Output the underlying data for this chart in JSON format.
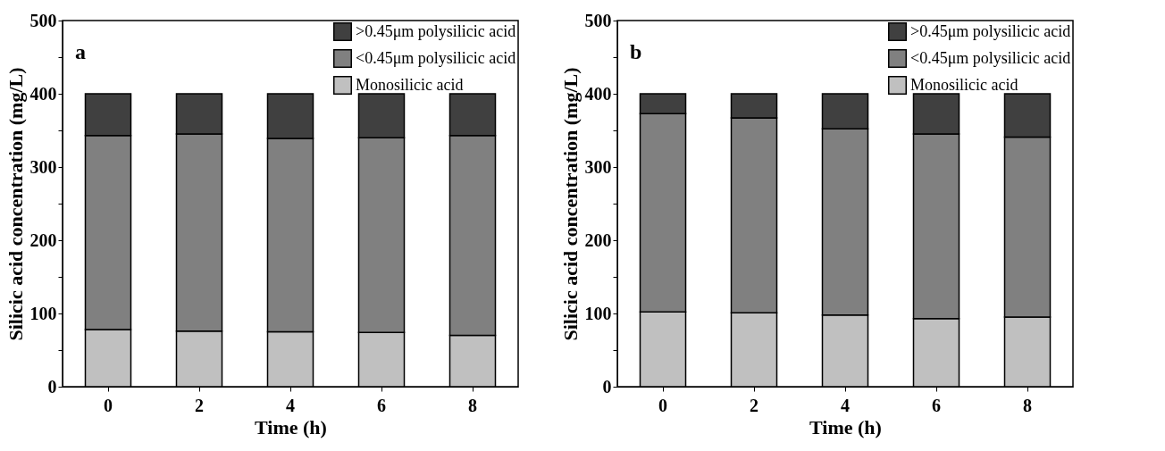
{
  "chart_data": [
    {
      "type": "bar",
      "stacked": true,
      "annotations": [
        "a"
      ],
      "xlabel": "Time (h)",
      "ylabel": "Silicic acid concentration (mg/L)",
      "categories": [
        "0",
        "2",
        "4",
        "6",
        "8"
      ],
      "series": [
        {
          "name": "Monosilicic acid",
          "color": "#c0c0c0",
          "values": [
            78,
            76,
            75,
            74,
            70
          ]
        },
        {
          "name": "<0.45μm polysilicic acid",
          "color": "#808080",
          "values": [
            265,
            269,
            264,
            266,
            273
          ]
        },
        {
          "name": ">0.45μm polysilicic acid",
          "color": "#404040",
          "values": [
            57,
            55,
            61,
            60,
            57
          ]
        }
      ],
      "ylim": [
        0,
        500
      ],
      "yticks": [
        0,
        {
          "value": 50,
          "label": null
        },
        100,
        {
          "value": 150,
          "label": null
        },
        200,
        {
          "value": 250,
          "label": null
        },
        300,
        {
          "value": 350,
          "label": null
        },
        400,
        {
          "value": 450,
          "label": null
        },
        500
      ],
      "legend": "top right"
    },
    {
      "type": "bar",
      "stacked": true,
      "annotations": [
        "b"
      ],
      "xlabel": "Time (h)",
      "ylabel": "Silicic acid concentration (mg/L)",
      "categories": [
        "0",
        "2",
        "4",
        "6",
        "8"
      ],
      "series": [
        {
          "name": "Monosilicic acid",
          "color": "#c0c0c0",
          "values": [
            102,
            101,
            98,
            93,
            95
          ]
        },
        {
          "name": "<0.45μm polysilicic acid",
          "color": "#808080",
          "values": [
            271,
            266,
            254,
            252,
            246
          ]
        },
        {
          "name": ">0.45μm polysilicic acid",
          "color": "#404040",
          "values": [
            27,
            33,
            48,
            55,
            59
          ]
        }
      ],
      "ylim": [
        0,
        500
      ],
      "yticks": [
        0,
        {
          "value": 50,
          "label": null
        },
        100,
        {
          "value": 150,
          "label": null
        },
        200,
        {
          "value": 250,
          "label": null
        },
        300,
        {
          "value": 350,
          "label": null
        },
        400,
        {
          "value": 450,
          "label": null
        },
        500
      ],
      "legend": "top right"
    }
  ]
}
